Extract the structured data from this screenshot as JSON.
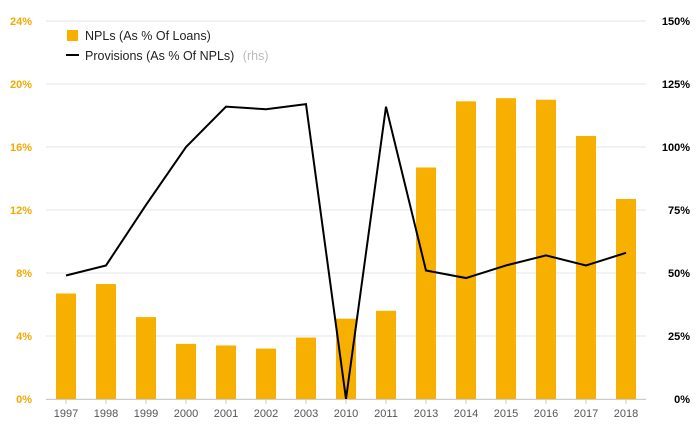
{
  "colors": {
    "bar": "#f7b000",
    "line": "#000000",
    "grid": "#e6e6e6",
    "left_axis_text": "#f2a900",
    "right_axis_text": "#000000",
    "x_axis_text": "#555555"
  },
  "legend": {
    "bar_label": "NPLs (As % Of Loans)",
    "line_label": "Provisions (As % Of NPLs)",
    "line_note": "(rhs)"
  },
  "chart_data": {
    "type": "bar",
    "categories": [
      "1997",
      "1998",
      "1999",
      "2000",
      "2001",
      "2002",
      "2003",
      "2010",
      "2011",
      "2013",
      "2014",
      "2015",
      "2016",
      "2017",
      "2018"
    ],
    "series": [
      {
        "name": "NPLs (As % Of Loans)",
        "type": "bar",
        "axis": "left",
        "values": [
          6.7,
          7.3,
          5.2,
          3.5,
          3.4,
          3.2,
          3.9,
          5.1,
          5.6,
          14.7,
          18.9,
          19.1,
          19.0,
          16.7,
          12.7
        ]
      },
      {
        "name": "Provisions (As % Of NPLs)",
        "type": "line",
        "axis": "right",
        "values": [
          49,
          53,
          77,
          100,
          116,
          115,
          117,
          0,
          116,
          51,
          48,
          53,
          57,
          53,
          58
        ]
      }
    ],
    "y_left": {
      "min": 0,
      "max": 24,
      "ticks": [
        "0%",
        "4%",
        "8%",
        "12%",
        "16%",
        "20%",
        "24%"
      ]
    },
    "y_right": {
      "min": 0,
      "max": 150,
      "ticks": [
        "0%",
        "25%",
        "50%",
        "75%",
        "100%",
        "125%",
        "150%"
      ]
    },
    "grid": true,
    "legend_position": "top-left"
  }
}
